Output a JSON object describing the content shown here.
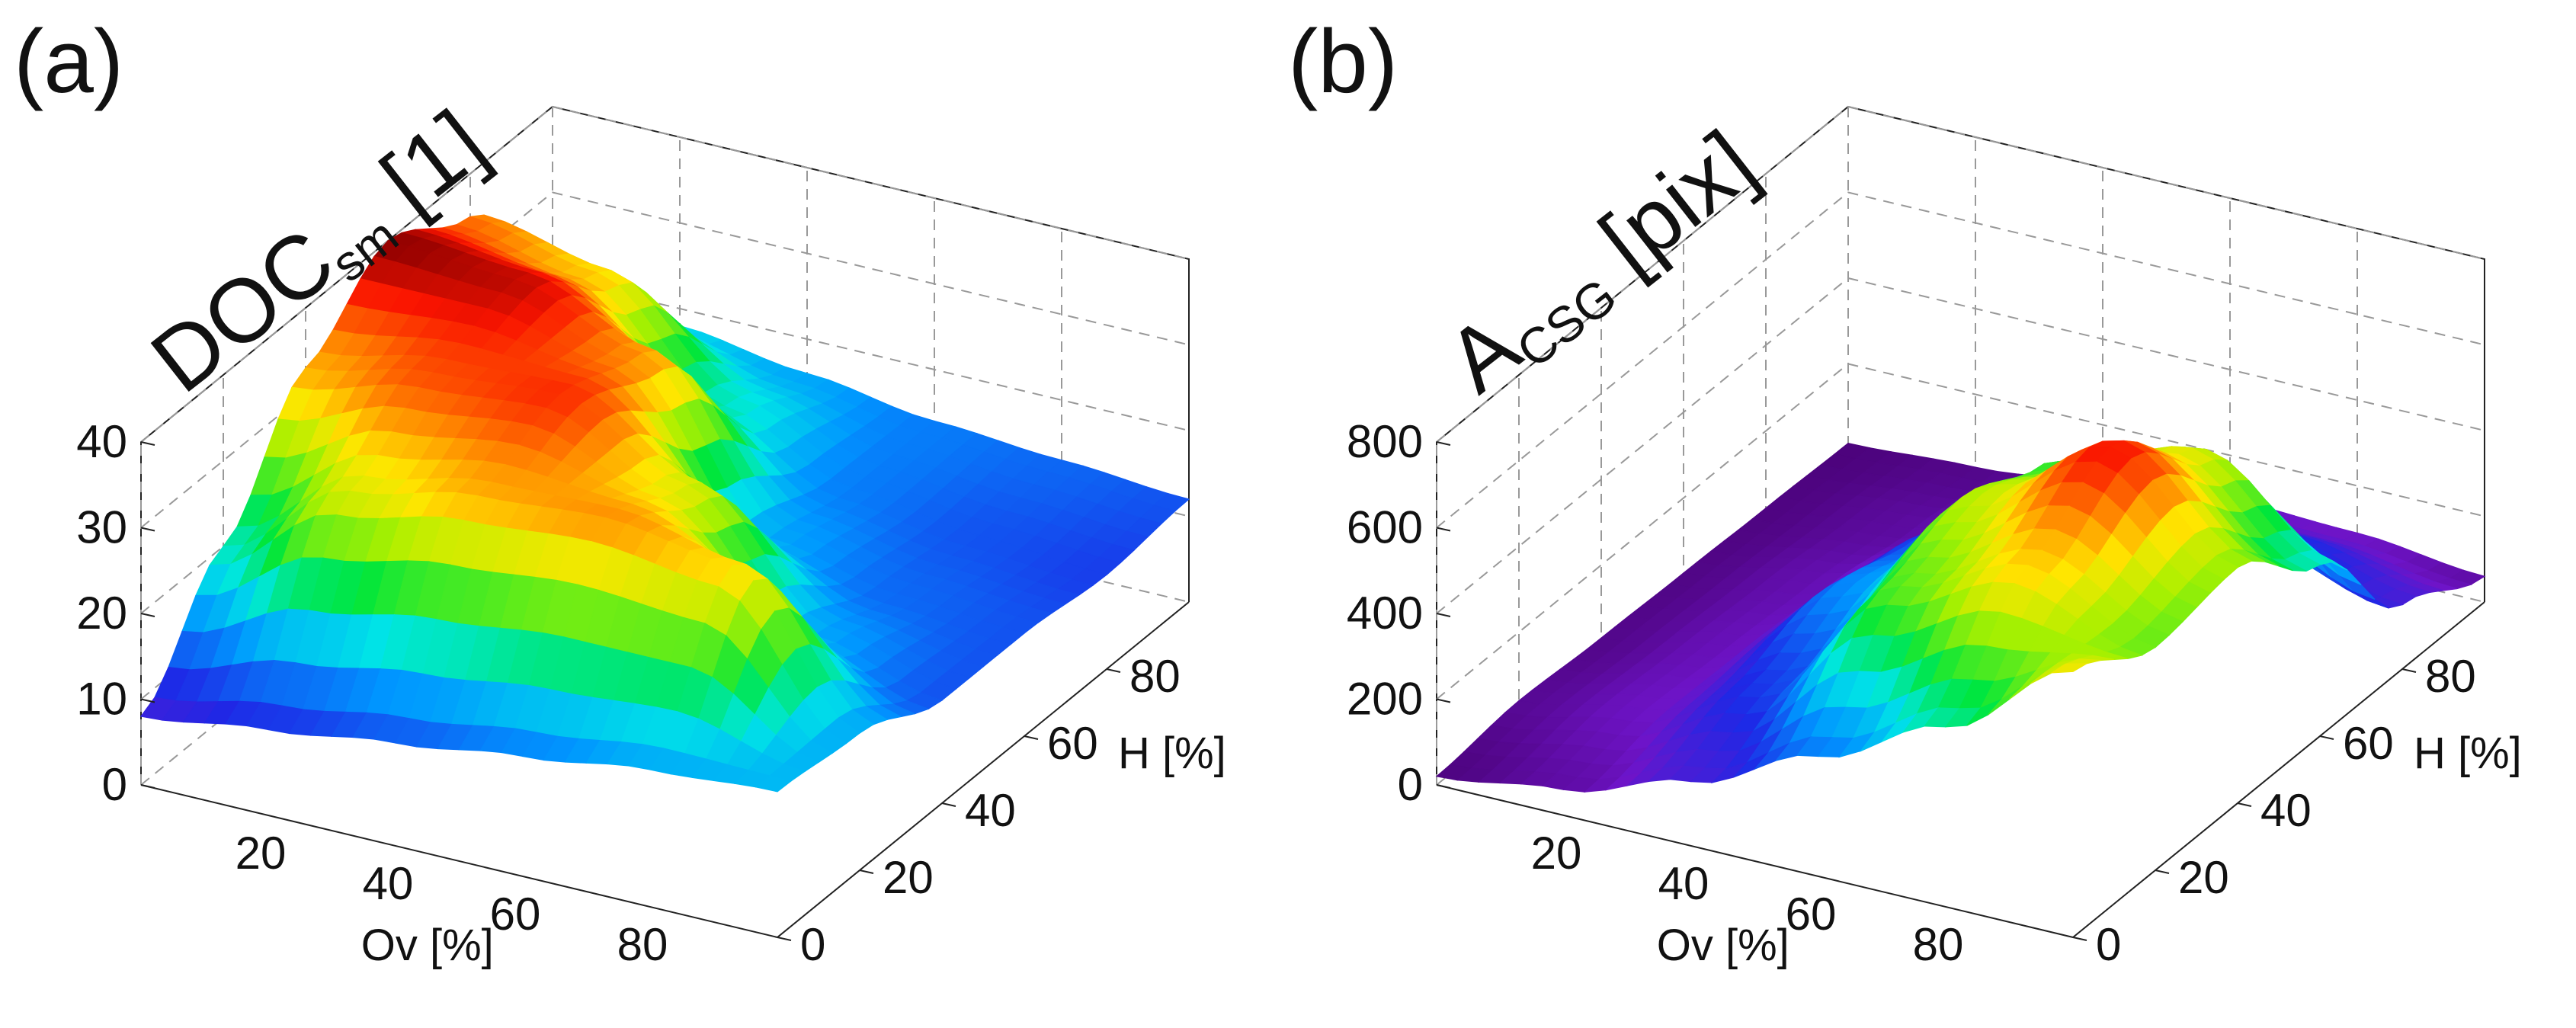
{
  "chart_data": [
    {
      "type": "surface",
      "panel_label": "(a)",
      "z_title": "DOC",
      "z_title_sub": "sm",
      "z_title_unit": " [1]",
      "xlabel": "Ov [%]",
      "ylabel": "H [%]",
      "x_ticks": [
        "20",
        "40",
        "60",
        "80"
      ],
      "y_ticks": [
        "0",
        "20",
        "40",
        "60",
        "80"
      ],
      "z_ticks": [
        "0",
        "10",
        "20",
        "30",
        "40"
      ],
      "x_range": [
        0,
        100
      ],
      "y_range": [
        0,
        100
      ],
      "z_range": [
        0,
        40
      ],
      "x": [
        0,
        20,
        40,
        60,
        80,
        100
      ],
      "y": [
        0,
        20,
        40,
        60,
        80,
        100
      ],
      "z": [
        [
          8,
          10,
          12,
          14,
          16,
          17
        ],
        [
          20,
          30,
          33,
          34,
          32,
          16
        ],
        [
          33,
          36,
          37,
          30,
          16,
          12
        ],
        [
          40,
          39,
          34,
          16,
          13,
          12
        ],
        [
          35,
          32,
          20,
          14,
          12,
          11
        ],
        [
          20,
          18,
          16,
          14,
          13,
          12
        ]
      ],
      "colormap": "jet-like (violet-blue-cyan-green-yellow-red)"
    },
    {
      "type": "surface",
      "panel_label": "(b)",
      "z_title": "A",
      "z_title_sub": "CSG",
      "z_title_unit": " [pix]",
      "xlabel": "Ov [%]",
      "ylabel": "H [%]",
      "x_ticks": [
        "20",
        "40",
        "60",
        "80"
      ],
      "y_ticks": [
        "0",
        "20",
        "40",
        "60",
        "80"
      ],
      "z_ticks": [
        "0",
        "200",
        "400",
        "600",
        "800"
      ],
      "x_range": [
        0,
        100
      ],
      "y_range": [
        0,
        100
      ],
      "z_range": [
        0,
        800
      ],
      "x": [
        0,
        20,
        40,
        60,
        80,
        100
      ],
      "y": [
        0,
        20,
        40,
        60,
        80,
        100
      ],
      "z": [
        [
          20,
          60,
          150,
          280,
          420,
          620
        ],
        [
          40,
          90,
          220,
          520,
          640,
          520
        ],
        [
          30,
          80,
          300,
          580,
          760,
          550
        ],
        [
          25,
          70,
          250,
          500,
          600,
          400
        ],
        [
          20,
          50,
          120,
          200,
          220,
          150
        ],
        [
          15,
          30,
          60,
          100,
          90,
          60
        ]
      ],
      "colormap": "jet-like (violet-blue-cyan-green-yellow-red)"
    }
  ]
}
